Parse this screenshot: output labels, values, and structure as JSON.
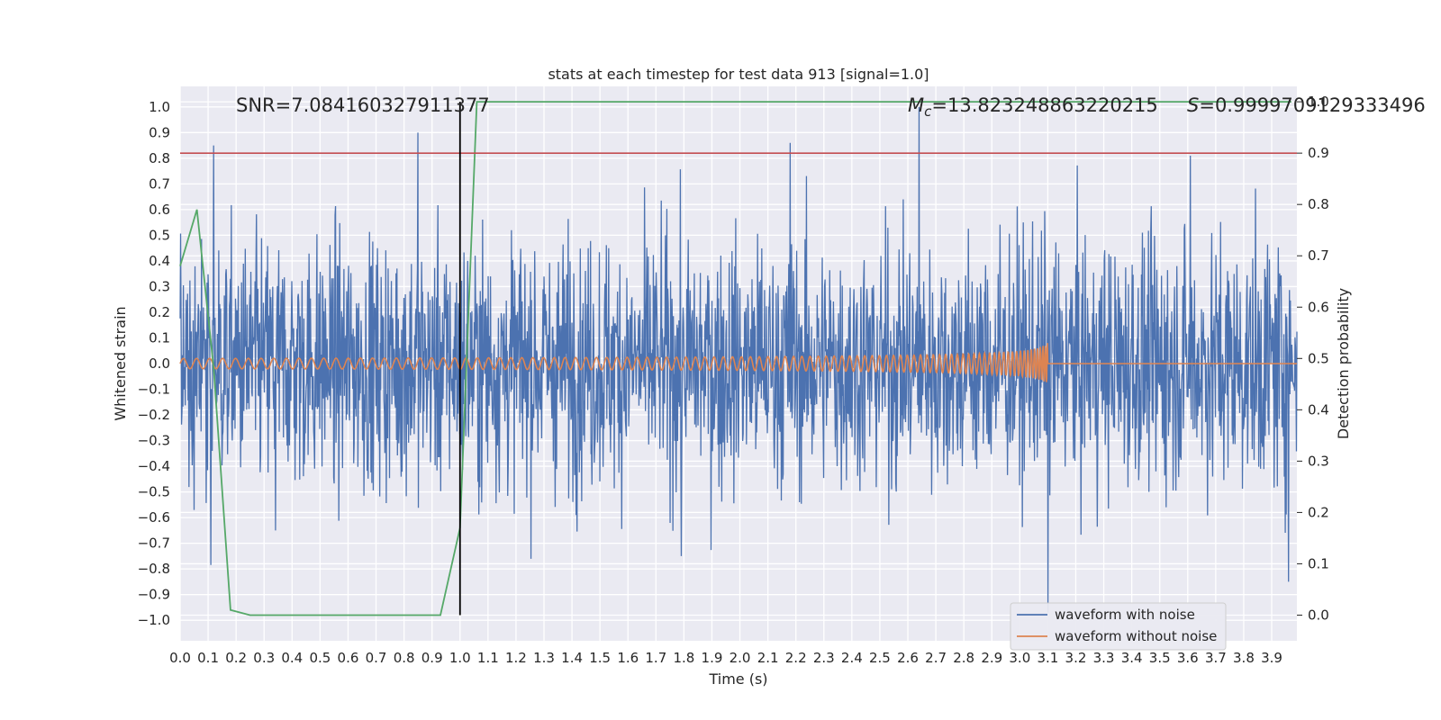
{
  "chart_data": {
    "type": "line",
    "title": "stats at each timestep for test data 913 [signal=1.0]",
    "xlabel": "Time (s)",
    "ylabel": "Whitened strain",
    "y2label": "Detection probability",
    "xlim": [
      0.0,
      3.99
    ],
    "ylim": [
      -1.08,
      1.08
    ],
    "y2lim": [
      -0.05,
      1.03
    ],
    "xticks": [
      "0.0",
      "0.1",
      "0.2",
      "0.3",
      "0.4",
      "0.5",
      "0.6",
      "0.7",
      "0.8",
      "0.9",
      "1.0",
      "1.1",
      "1.2",
      "1.3",
      "1.4",
      "1.5",
      "1.6",
      "1.7",
      "1.8",
      "1.9",
      "2.0",
      "2.1",
      "2.2",
      "2.3",
      "2.4",
      "2.5",
      "2.6",
      "2.7",
      "2.8",
      "2.9",
      "3.0",
      "3.1",
      "3.2",
      "3.3",
      "3.4",
      "3.5",
      "3.6",
      "3.7",
      "3.8",
      "3.9"
    ],
    "yticks": [
      "1.0",
      "0.9",
      "0.8",
      "0.7",
      "0.6",
      "0.5",
      "0.4",
      "0.3",
      "0.2",
      "0.1",
      "0.0",
      "−0.1",
      "−0.2",
      "−0.3",
      "−0.4",
      "−0.5",
      "−0.6",
      "−0.7",
      "−0.8",
      "−0.9",
      "−1.0"
    ],
    "y2ticks": [
      "1.0",
      "0.9",
      "0.8",
      "0.7",
      "0.6",
      "0.5",
      "0.4",
      "0.3",
      "0.2",
      "0.1",
      "0.0"
    ],
    "grid": true,
    "legend_position": "lower-right",
    "annotations": {
      "snr": "SNR=7.084160327911377",
      "mc": "=13.823248863220215",
      "mc_symbol": "M",
      "mc_subscript": "c",
      "s": "=0.9999709129333496",
      "s_symbol": "S"
    },
    "threshold_line": {
      "axis": "right",
      "value": 0.9,
      "color": "#c44e52"
    },
    "vertical_line": {
      "x": 1.0,
      "color": "#000000"
    },
    "series": [
      {
        "name": "waveform with noise",
        "color": "#4c72b0",
        "axis": "left",
        "description_of_values": "noisy whitened strain, amplitude roughly within -0.97 to 1.0",
        "peaks": [
          {
            "x": 0.12,
            "y": 0.85
          },
          {
            "x": 0.85,
            "y": 0.9
          },
          {
            "x": 2.18,
            "y": 0.86
          },
          {
            "x": 2.64,
            "y": 1.0
          },
          {
            "x": 3.1,
            "y": -0.97
          },
          {
            "x": 3.61,
            "y": 0.81
          },
          {
            "x": 3.96,
            "y": -0.85
          },
          {
            "x": 0.34,
            "y": -0.65
          },
          {
            "x": 1.79,
            "y": -0.75
          }
        ]
      },
      {
        "name": "waveform without noise",
        "color": "#dd8452",
        "axis": "left",
        "chirp": {
          "start_x": 0.0,
          "merger_x": 3.1,
          "start_amplitude": 0.02,
          "peak_amplitude": 0.3,
          "post_merger_value": 0.0
        }
      },
      {
        "name": "",
        "color": "#55a868",
        "axis": "right",
        "x": [
          0.0,
          0.06,
          0.12,
          0.18,
          0.25,
          0.31,
          0.37,
          0.43,
          0.5,
          0.56,
          0.62,
          0.68,
          0.75,
          0.81,
          0.87,
          0.93,
          1.0,
          1.06,
          1.12,
          1.5,
          2.0,
          2.5,
          3.0,
          3.5,
          3.97
        ],
        "values": [
          0.68,
          0.79,
          0.48,
          0.01,
          0.0,
          0.0,
          0.0,
          0.0,
          0.0,
          0.0,
          0.0,
          0.0,
          0.0,
          0.0,
          0.0,
          0.0,
          0.17,
          1.0,
          1.0,
          1.0,
          1.0,
          1.0,
          1.0,
          1.0,
          1.0
        ]
      }
    ]
  }
}
